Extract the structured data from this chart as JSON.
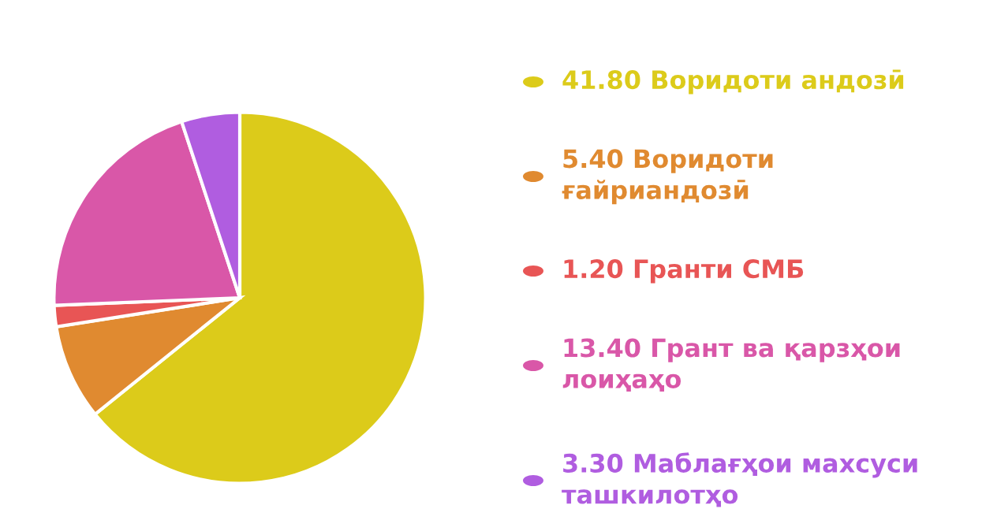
{
  "chart_data": {
    "type": "pie",
    "categories": [
      "Воридоти андозӣ",
      "Воридоти ғайриандозӣ",
      "Гранти СМБ",
      "Грант ва қарзҳои лоиҳаҳо",
      "Маблағҳои махсуси ташкилотҳо"
    ],
    "values": [
      41.8,
      5.4,
      1.2,
      13.4,
      3.3
    ],
    "value_labels": [
      "41.80",
      "5.40",
      "1.20",
      "13.40",
      "3.30"
    ],
    "colors": [
      "#dccb1a",
      "#e08a30",
      "#e85555",
      "#d957a8",
      "#b05de0"
    ],
    "legend": "right"
  }
}
